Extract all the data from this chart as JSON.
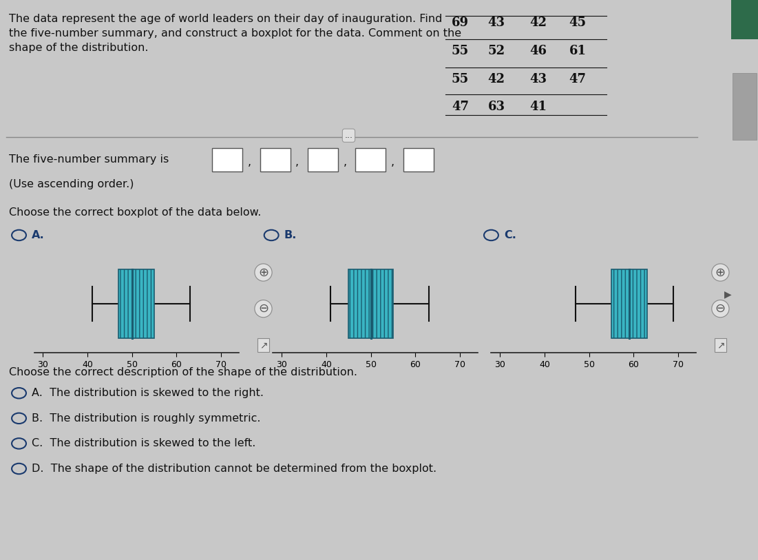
{
  "title_text": "The data represent the age of world leaders on their day of inauguration. Find\nthe five-number summary, and construct a boxplot for the data. Comment on the\nshape of the distribution.",
  "table_data": [
    [
      69,
      43,
      42,
      45
    ],
    [
      55,
      52,
      46,
      61
    ],
    [
      55,
      42,
      43,
      47
    ],
    [
      47,
      63,
      41,
      null
    ]
  ],
  "five_number_label": "The five-number summary is",
  "ascending_note": "(Use ascending order.)",
  "boxplot_label": "Choose the correct boxplot of the data below.",
  "shape_label": "Choose the correct description of the shape of the distribution.",
  "radio_labels_bp": [
    "A.",
    "B.",
    "C."
  ],
  "boxplot_A": {
    "min": 41,
    "q1": 47,
    "median": 50,
    "q3": 55,
    "max": 63
  },
  "boxplot_B": {
    "min": 41,
    "q1": 45,
    "median": 50,
    "q3": 55,
    "max": 63
  },
  "boxplot_C": {
    "min": 47,
    "q1": 55,
    "median": 59,
    "q3": 63,
    "max": 69
  },
  "xrange": [
    28,
    74
  ],
  "xticks": [
    30,
    40,
    50,
    60,
    70
  ],
  "options": [
    "A.  The distribution is skewed to the right.",
    "B.  The distribution is roughly symmetric.",
    "C.  The distribution is skewed to the left.",
    "D.  The shape of the distribution cannot be determined from the boxplot."
  ],
  "bg_color": "#c8c8c8",
  "box_facecolor": "#3ab5c3",
  "box_edgecolor": "#1a5c70",
  "median_color": "#1a5c70",
  "whisker_color": "#111111",
  "radio_color": "#1a3a6e",
  "label_color": "#1a3a6e",
  "text_color": "#111111",
  "title_fontsize": 11.5,
  "body_fontsize": 11.5,
  "table_fontsize": 13
}
